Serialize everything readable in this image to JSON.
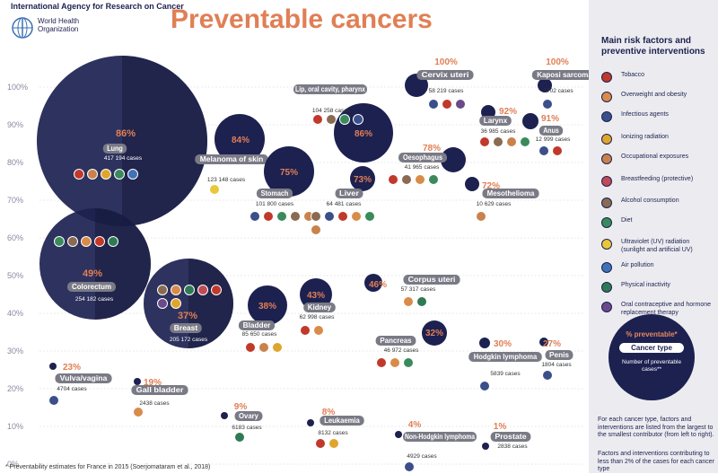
{
  "header": {
    "org": "International Agency for Research on Cancer",
    "who": "World Health Organization",
    "title": "Preventable cancers"
  },
  "footnote": "* Preventability estimates for France in 2015 (Soerjomataram et al., 2018)",
  "colors": {
    "navy": "#1c2150",
    "accent": "#e07f55",
    "label_bg": "#7a7a86",
    "grid": "#c9c9d4"
  },
  "sidebar": {
    "title": "Main risk factors and preventive interventions",
    "legend": [
      {
        "label": "Tobacco",
        "icon": "tobacco-icon",
        "color": "#c0392b"
      },
      {
        "label": "Overweight and obesity",
        "icon": "obesity-icon",
        "color": "#d98b4a"
      },
      {
        "label": "Infectious agents",
        "icon": "virus-icon",
        "color": "#3b4f8a"
      },
      {
        "label": "Ionizing radiation",
        "icon": "radiation-icon",
        "color": "#e0a52c"
      },
      {
        "label": "Occupational exposures",
        "icon": "worker-icon",
        "color": "#c9824c"
      },
      {
        "label": "Breastfeeding (protective)",
        "icon": "breastfeeding-icon",
        "color": "#c04a55"
      },
      {
        "label": "Alcohol consumption",
        "icon": "alcohol-icon",
        "color": "#8a6a52"
      },
      {
        "label": "Diet",
        "icon": "diet-icon",
        "color": "#3a8a5c"
      },
      {
        "label": "Ultraviolet (UV) radiation (sunlight and artificial UV)",
        "icon": "sun-icon",
        "color": "#e8c83a"
      },
      {
        "label": "Air pollution",
        "icon": "air-icon",
        "color": "#3f72b8"
      },
      {
        "label": "Physical inactivity",
        "icon": "inactivity-icon",
        "color": "#2f7a55"
      },
      {
        "label": "Oral contraceptive and hormone replacement therapy",
        "icon": "pill-icon",
        "color": "#6a4a8a"
      }
    ],
    "key": {
      "pct": "% preventable*",
      "type": "Cancer type",
      "cases": "Number of preventable cases**"
    },
    "note1": "For each cancer type, factors and interventions are listed from the largest to the smallest contributor (from left to right).",
    "note2": "Factors and interventions contributing to less than 2% of the cases for each cancer type"
  },
  "chart_data": {
    "type": "scatter",
    "ylabel": "",
    "yticks": [
      "100%",
      "90%",
      "80%",
      "70%",
      "60%",
      "50%",
      "40%",
      "30%",
      "20%",
      "10%",
      "0%"
    ],
    "ylim": [
      0,
      100
    ],
    "points": [
      {
        "name": "Lung",
        "y": 86,
        "pct": "86%",
        "cases": "417 194 cases",
        "cases_n": 417194,
        "icons": [
          "tobacco",
          "occupational",
          "radiation",
          "diet",
          "air"
        ]
      },
      {
        "name": "Melanoma of skin",
        "y": 84,
        "pct": "84%",
        "cases": "123 148 cases",
        "cases_n": 123148,
        "icons": [
          "uv"
        ]
      },
      {
        "name": "Stomach",
        "y": 75,
        "pct": "75%",
        "cases": "101 800 cases",
        "cases_n": 101800,
        "icons": [
          "infectious",
          "tobacco",
          "diet",
          "alcohol",
          "occupational"
        ]
      },
      {
        "name": "Lip, oral cavity, pharynx",
        "y": 86,
        "pct": "86%",
        "cases": "104 258 cases",
        "cases_n": 104258,
        "icons": [
          "tobacco",
          "alcohol",
          "diet",
          "infectious"
        ]
      },
      {
        "name": "Liver",
        "y": 73,
        "pct": "73%",
        "cases": "64 481 cases",
        "cases_n": 64481,
        "icons": [
          "alcohol",
          "infectious",
          "tobacco",
          "obesity",
          "diet",
          "occupational"
        ]
      },
      {
        "name": "Oesophagus",
        "y": 78,
        "pct": "78%",
        "cases": "41 965 cases",
        "cases_n": 41965,
        "icons": [
          "tobacco",
          "alcohol",
          "obesity",
          "diet"
        ]
      },
      {
        "name": "Cervix uteri",
        "y": 100,
        "pct": "100%",
        "cases": "58 219 cases",
        "cases_n": 58219,
        "icons": [
          "infectious",
          "tobacco",
          "contraceptive"
        ]
      },
      {
        "name": "Larynx",
        "y": 92,
        "pct": "92%",
        "cases": "36 985 cases",
        "cases_n": 36985,
        "icons": [
          "tobacco",
          "alcohol",
          "occupational",
          "diet"
        ]
      },
      {
        "name": "Kaposi sarcoma",
        "y": 100,
        "pct": "100%",
        "cases": "2702 cases",
        "cases_n": 2702,
        "icons": [
          "infectious"
        ]
      },
      {
        "name": "Anus",
        "y": 91,
        "pct": "91%",
        "cases": "12 999 cases",
        "cases_n": 12999,
        "icons": [
          "infectious",
          "tobacco"
        ]
      },
      {
        "name": "Mesothelioma",
        "y": 72,
        "pct": "72%",
        "cases": "10 629 cases",
        "cases_n": 10629,
        "icons": [
          "occupational"
        ]
      },
      {
        "name": "Colorectum",
        "y": 49,
        "pct": "49%",
        "cases": "254 182 cases",
        "cases_n": 254182,
        "icons": [
          "diet",
          "alcohol",
          "obesity",
          "tobacco",
          "inactivity"
        ]
      },
      {
        "name": "Breast",
        "y": 37,
        "pct": "37%",
        "cases": "205 172 cases",
        "cases_n": 205172,
        "icons": [
          "alcohol",
          "obesity",
          "inactivity",
          "breastfeeding",
          "tobacco",
          "contraceptive",
          "radiation"
        ]
      },
      {
        "name": "Bladder",
        "y": 38,
        "pct": "38%",
        "cases": "85 650 cases",
        "cases_n": 85650,
        "icons": [
          "tobacco",
          "occupational",
          "radiation"
        ]
      },
      {
        "name": "Kidney",
        "y": 43,
        "pct": "43%",
        "cases": "62 998 cases",
        "cases_n": 62998,
        "icons": [
          "tobacco",
          "obesity"
        ]
      },
      {
        "name": "Corpus uteri",
        "y": 46,
        "pct": "46%",
        "cases": "57 317 cases",
        "cases_n": 57317,
        "icons": [
          "obesity",
          "inactivity"
        ]
      },
      {
        "name": "Pancreas",
        "y": 32,
        "pct": "32%",
        "cases": "46 972 cases",
        "cases_n": 46972,
        "icons": [
          "tobacco",
          "obesity",
          "diet"
        ]
      },
      {
        "name": "Hodgkin lymphoma",
        "y": 30,
        "pct": "30%",
        "cases": "5839 cases",
        "cases_n": 5839,
        "icons": [
          "infectious"
        ]
      },
      {
        "name": "Penis",
        "y": 27,
        "pct": "27%",
        "cases": "1804 cases",
        "cases_n": 1804,
        "icons": [
          "infectious"
        ]
      },
      {
        "name": "Vulva/vagina",
        "y": 23,
        "pct": "23%",
        "cases": "4704 cases",
        "cases_n": 4704,
        "icons": [
          "infectious"
        ]
      },
      {
        "name": "Gall bladder",
        "y": 19,
        "pct": "19%",
        "cases": "2438 cases",
        "cases_n": 2438,
        "icons": [
          "obesity"
        ]
      },
      {
        "name": "Ovary",
        "y": 9,
        "pct": "9%",
        "cases": "6183 cases",
        "cases_n": 6183,
        "icons": [
          "inactivity"
        ]
      },
      {
        "name": "Leukaemia",
        "y": 8,
        "pct": "8%",
        "cases": "8132 cases",
        "cases_n": 8132,
        "icons": [
          "tobacco",
          "radiation"
        ]
      },
      {
        "name": "Non-Hodgkin lymphoma",
        "y": 4,
        "pct": "4%",
        "cases": "4929 cases",
        "cases_n": 4929,
        "icons": [
          "infectious"
        ]
      },
      {
        "name": "Prostate",
        "y": 1,
        "pct": "1%",
        "cases": "2838 cases",
        "cases_n": 2838,
        "icons": []
      }
    ]
  }
}
